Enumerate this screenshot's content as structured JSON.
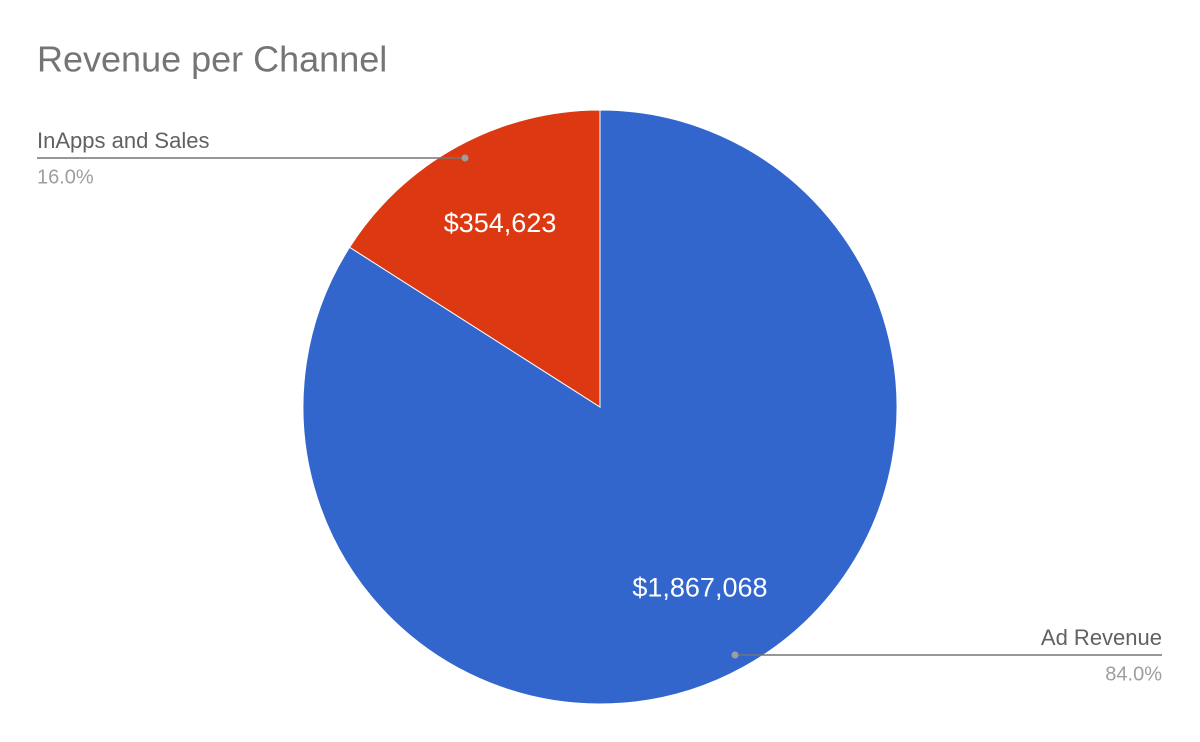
{
  "chart_data": {
    "type": "pie",
    "title": "Revenue per Channel",
    "categories": [
      "Ad Revenue",
      "InApps and Sales"
    ],
    "values": [
      1867068,
      354623
    ],
    "value_labels": [
      "$1,867,068",
      "$354,623"
    ],
    "percentages": [
      84.0,
      16.0
    ],
    "percentage_labels": [
      "84.0%",
      "16.0%"
    ],
    "colors": [
      "#3366cc",
      "#dc3912"
    ]
  }
}
